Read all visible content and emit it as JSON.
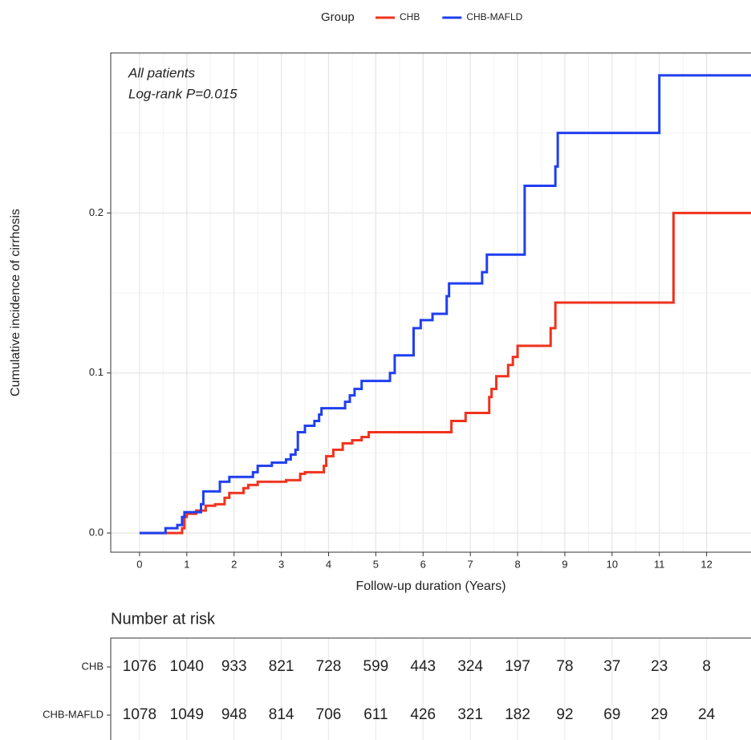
{
  "chart_data": {
    "type": "line",
    "step": true,
    "legend_title": "Group",
    "annotations": [
      "All patients",
      "Log-rank  P=0.015"
    ],
    "x_label": "Follow-up duration (Years)",
    "y_label": "Cumulative incidence of cirrhosis",
    "xlim": [
      -0.61,
      12.94
    ],
    "ylim": [
      -0.012,
      0.3
    ],
    "xticks": [
      0,
      1,
      2,
      3,
      4,
      5,
      6,
      7,
      8,
      9,
      10,
      11,
      12
    ],
    "yticks": [
      {
        "value": 0,
        "label": "0.0"
      },
      0.1,
      0.2
    ],
    "grid": true,
    "series": [
      {
        "name": "CHB",
        "color": "#f0321e",
        "x": [
          0,
          0.9,
          0.95,
          1.0,
          1.2,
          1.4,
          1.6,
          1.8,
          1.9,
          2.2,
          2.3,
          2.5,
          3.1,
          3.4,
          3.5,
          3.9,
          3.95,
          4.1,
          4.3,
          4.5,
          4.7,
          4.85,
          6.6,
          6.9,
          7.4,
          7.45,
          7.55,
          7.8,
          7.9,
          8.0,
          8.7,
          8.8,
          11.3,
          12.94
        ],
        "values": [
          0,
          0.003,
          0.01,
          0.012,
          0.014,
          0.017,
          0.018,
          0.022,
          0.025,
          0.028,
          0.03,
          0.032,
          0.033,
          0.037,
          0.038,
          0.042,
          0.048,
          0.052,
          0.056,
          0.058,
          0.06,
          0.063,
          0.07,
          0.075,
          0.085,
          0.09,
          0.098,
          0.105,
          0.11,
          0.117,
          0.128,
          0.144,
          0.2,
          0.2
        ]
      },
      {
        "name": "CHB-MAFLD",
        "color": "#1f3ff0",
        "x": [
          0,
          0.55,
          0.8,
          0.9,
          0.95,
          1.3,
          1.35,
          1.7,
          1.9,
          2.4,
          2.5,
          2.8,
          3.1,
          3.2,
          3.3,
          3.35,
          3.5,
          3.7,
          3.8,
          3.85,
          4.35,
          4.45,
          4.55,
          4.7,
          5.3,
          5.4,
          5.8,
          5.95,
          6.2,
          6.5,
          6.55,
          7.25,
          7.35,
          8.15,
          8.8,
          8.85,
          11.0,
          12.94
        ],
        "values": [
          0,
          0.003,
          0.005,
          0.01,
          0.013,
          0.018,
          0.026,
          0.032,
          0.035,
          0.038,
          0.042,
          0.044,
          0.046,
          0.049,
          0.052,
          0.063,
          0.067,
          0.07,
          0.074,
          0.078,
          0.082,
          0.086,
          0.09,
          0.095,
          0.1,
          0.111,
          0.128,
          0.133,
          0.137,
          0.148,
          0.156,
          0.163,
          0.174,
          0.217,
          0.229,
          0.25,
          0.286,
          0.286
        ]
      }
    ],
    "risk_table": {
      "title": "Number at risk",
      "rows": [
        {
          "name": "CHB",
          "color": "#f0321e",
          "values": [
            1076,
            1040,
            933,
            821,
            728,
            599,
            443,
            324,
            197,
            78,
            37,
            23,
            8
          ]
        },
        {
          "name": "CHB-MAFLD",
          "color": "#1f3ff0",
          "values": [
            1078,
            1049,
            948,
            814,
            706,
            611,
            426,
            321,
            182,
            92,
            69,
            29,
            24
          ]
        }
      ]
    }
  }
}
